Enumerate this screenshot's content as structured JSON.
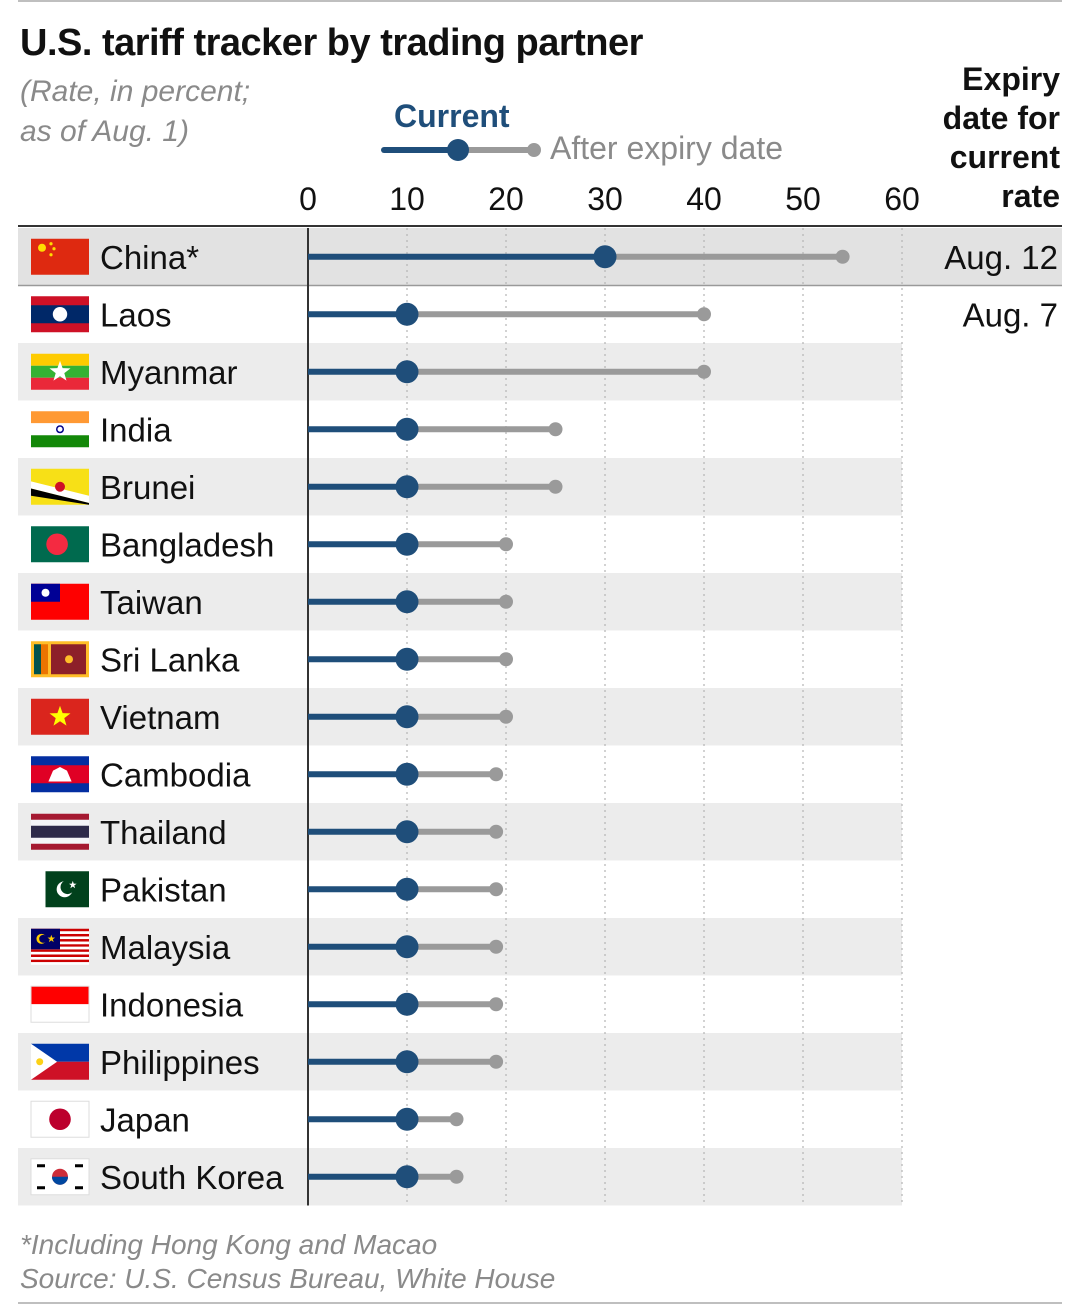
{
  "header": {
    "title": "U.S. tariff tracker by trading partner",
    "subtitle_line1": "(Rate, in percent;",
    "subtitle_line2": "as of Aug. 1)",
    "legend_current": "Current",
    "legend_after": "After expiry date",
    "expiry_line1": "Expiry",
    "expiry_line2": "date for",
    "expiry_line3": "current",
    "expiry_line4": "rate"
  },
  "footer": {
    "note": "*Including Hong Kong and Macao",
    "source": "Source: U.S. Census Bureau, White House"
  },
  "colors": {
    "current": "#1f4e7a",
    "after": "#9a9a9a",
    "band": "#ececec",
    "china_band": "#e2e2e2"
  },
  "chart_data": {
    "type": "dumbbell",
    "title": "U.S. tariff tracker by trading partner",
    "subtitle": "(Rate, in percent; as of Aug. 1)",
    "xlim": [
      0,
      60
    ],
    "xticks": [
      0,
      10,
      20,
      30,
      40,
      50,
      60
    ],
    "grid": true,
    "legend": "top-center",
    "series": [
      {
        "name": "Current"
      },
      {
        "name": "After expiry date"
      }
    ],
    "rows": [
      {
        "country": "China*",
        "current": 30,
        "after": 54,
        "expiry": "Aug. 12",
        "flag": "china-flag"
      },
      {
        "country": "Laos",
        "current": 10,
        "after": 40,
        "expiry": "Aug. 7",
        "flag": "laos-flag"
      },
      {
        "country": "Myanmar",
        "current": 10,
        "after": 40,
        "expiry": "",
        "flag": "myanmar-flag"
      },
      {
        "country": "India",
        "current": 10,
        "after": 25,
        "expiry": "",
        "flag": "india-flag"
      },
      {
        "country": "Brunei",
        "current": 10,
        "after": 25,
        "expiry": "",
        "flag": "brunei-flag"
      },
      {
        "country": "Bangladesh",
        "current": 10,
        "after": 20,
        "expiry": "",
        "flag": "bangladesh-flag"
      },
      {
        "country": "Taiwan",
        "current": 10,
        "after": 20,
        "expiry": "",
        "flag": "taiwan-flag"
      },
      {
        "country": "Sri Lanka",
        "current": 10,
        "after": 20,
        "expiry": "",
        "flag": "sri-lanka-flag"
      },
      {
        "country": "Vietnam",
        "current": 10,
        "after": 20,
        "expiry": "",
        "flag": "vietnam-flag"
      },
      {
        "country": "Cambodia",
        "current": 10,
        "after": 19,
        "expiry": "",
        "flag": "cambodia-flag"
      },
      {
        "country": "Thailand",
        "current": 10,
        "after": 19,
        "expiry": "",
        "flag": "thailand-flag"
      },
      {
        "country": "Pakistan",
        "current": 10,
        "after": 19,
        "expiry": "",
        "flag": "pakistan-flag"
      },
      {
        "country": "Malaysia",
        "current": 10,
        "after": 19,
        "expiry": "",
        "flag": "malaysia-flag"
      },
      {
        "country": "Indonesia",
        "current": 10,
        "after": 19,
        "expiry": "",
        "flag": "indonesia-flag"
      },
      {
        "country": "Philippines",
        "current": 10,
        "after": 19,
        "expiry": "",
        "flag": "philippines-flag"
      },
      {
        "country": "Japan",
        "current": 10,
        "after": 15,
        "expiry": "",
        "flag": "japan-flag"
      },
      {
        "country": "South Korea",
        "current": 10,
        "after": 15,
        "expiry": "",
        "flag": "south-korea-flag"
      }
    ]
  }
}
